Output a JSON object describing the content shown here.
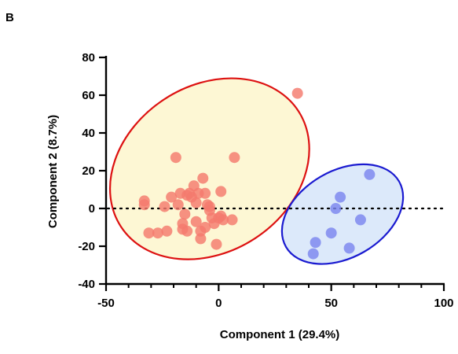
{
  "panel_label": "B",
  "chart_data": {
    "type": "scatter",
    "xlabel": "Component 1 (29.4%)",
    "ylabel": "Component 2 (8.7%)",
    "xlim": [
      -50,
      100
    ],
    "ylim": [
      -40,
      80
    ],
    "xticks": [
      -50,
      0,
      50,
      100
    ],
    "xtick_labels": [
      "-50",
      "0",
      "50",
      "100"
    ],
    "yticks": [
      -40,
      -20,
      0,
      20,
      40,
      60,
      80
    ],
    "ytick_labels": [
      "-40",
      "-20",
      "0",
      "20",
      "40",
      "60",
      "80"
    ],
    "reference_line": {
      "y": 0,
      "style": "dotted"
    },
    "grid": false,
    "series": [
      {
        "color": "#f47a6e",
        "ellipse": {
          "center": [
            -4,
            21
          ],
          "rx": 47,
          "ry": 44,
          "angle_deg": 33,
          "fill": "#fdf7d4",
          "stroke": "#dd1111"
        },
        "points": [
          [
            -33,
            4
          ],
          [
            -33,
            2
          ],
          [
            -31,
            -13
          ],
          [
            -27,
            -13
          ],
          [
            -24,
            1
          ],
          [
            -23,
            -12
          ],
          [
            -21,
            6
          ],
          [
            -19,
            27
          ],
          [
            -18,
            2
          ],
          [
            -17,
            8
          ],
          [
            -16,
            -8
          ],
          [
            -16,
            -11
          ],
          [
            -15,
            -3
          ],
          [
            -14,
            7
          ],
          [
            -14,
            -12
          ],
          [
            -13,
            8
          ],
          [
            -12,
            6
          ],
          [
            -11,
            12
          ],
          [
            -10,
            3
          ],
          [
            -10,
            -7
          ],
          [
            -9,
            8
          ],
          [
            -8,
            -12
          ],
          [
            -8,
            -16
          ],
          [
            -7,
            16
          ],
          [
            -6,
            -10
          ],
          [
            -6,
            8
          ],
          [
            -5,
            2
          ],
          [
            -4,
            1
          ],
          [
            -4,
            -1
          ],
          [
            -3,
            -5
          ],
          [
            -2,
            -8
          ],
          [
            -1,
            -19
          ],
          [
            0,
            -5
          ],
          [
            1,
            9
          ],
          [
            1,
            -4
          ],
          [
            2,
            -6
          ],
          [
            6,
            -6
          ],
          [
            7,
            27
          ],
          [
            35,
            61
          ]
        ]
      },
      {
        "color": "#7b86ef",
        "ellipse": {
          "center": [
            55,
            -3
          ],
          "rx": 29,
          "ry": 23,
          "angle_deg": 30,
          "fill": "#dce9fa",
          "stroke": "#1a1ad0"
        },
        "points": [
          [
            42,
            -24
          ],
          [
            43,
            -18
          ],
          [
            50,
            -13
          ],
          [
            52,
            0
          ],
          [
            54,
            6
          ],
          [
            58,
            -21
          ],
          [
            63,
            -6
          ],
          [
            67,
            18
          ]
        ]
      }
    ]
  }
}
